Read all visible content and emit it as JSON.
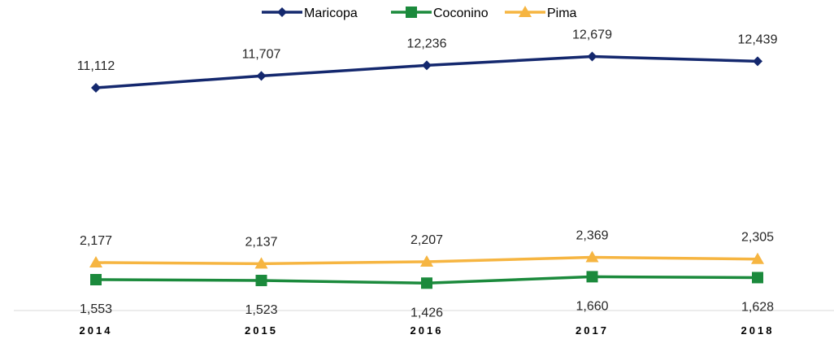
{
  "chart_data": {
    "type": "line",
    "x": [
      "2014",
      "2015",
      "2016",
      "2017",
      "2018"
    ],
    "series": [
      {
        "name": "Maricopa",
        "color": "#14286e",
        "marker": "diamond",
        "values": [
          11112,
          11707,
          12236,
          12679,
          12439
        ],
        "labels": [
          "11,112",
          "11,707",
          "12,236",
          "12,679",
          "12,439"
        ],
        "label_position": "above"
      },
      {
        "name": "Coconino",
        "color": "#1b8a3c",
        "marker": "square",
        "values": [
          1553,
          1523,
          1426,
          1660,
          1628
        ],
        "labels": [
          "1,553",
          "1,523",
          "1,426",
          "1,660",
          "1,628"
        ],
        "label_position": "below"
      },
      {
        "name": "Pima",
        "color": "#f6b541",
        "marker": "triangle",
        "values": [
          2177,
          2137,
          2207,
          2369,
          2305
        ],
        "labels": [
          "2,177",
          "2,137",
          "2,207",
          "2,369",
          "2,305"
        ],
        "label_position": "above"
      }
    ],
    "legend": "top-center",
    "grid": false,
    "title": "",
    "xlabel": "",
    "ylabel": ""
  }
}
